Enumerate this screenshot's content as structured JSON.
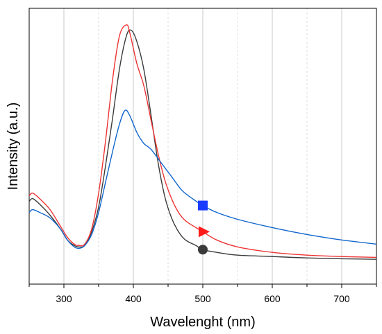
{
  "chart_data": {
    "type": "line",
    "title": "",
    "xlabel": "Wavelenght (nm)",
    "ylabel": "Intensity (a.u.)",
    "xlim": [
      250,
      750
    ],
    "ylim": [
      0,
      1
    ],
    "x_ticks": [
      300,
      400,
      500,
      600,
      700
    ],
    "x_minor_ticks": [
      250,
      350,
      450,
      550,
      650,
      750
    ],
    "y_ticks_shown": false,
    "grid": "vertical dashed at major and minor x ticks",
    "legend": "markers on curves at x=500",
    "series": [
      {
        "color": "#3a3a3a",
        "marker": "circle",
        "marker_x": 500,
        "marker_y": 0.125,
        "x": [
          250,
          255,
          265,
          280,
          295,
          305,
          315,
          322,
          330,
          340,
          350,
          360,
          370,
          380,
          390,
          397,
          405,
          415,
          425,
          435,
          445,
          455,
          465,
          475,
          490,
          500,
          520,
          550,
          600,
          650,
          700,
          750
        ],
        "y": [
          0.3,
          0.31,
          0.29,
          0.25,
          0.2,
          0.16,
          0.14,
          0.135,
          0.14,
          0.19,
          0.28,
          0.43,
          0.6,
          0.78,
          0.9,
          0.92,
          0.88,
          0.78,
          0.62,
          0.45,
          0.32,
          0.24,
          0.19,
          0.16,
          0.14,
          0.125,
          0.115,
          0.105,
          0.1,
          0.095,
          0.092,
          0.09
        ]
      },
      {
        "color": "#ee3333",
        "marker": "triangle-right",
        "marker_x": 500,
        "marker_y": 0.19,
        "x": [
          250,
          255,
          265,
          280,
          295,
          305,
          315,
          322,
          330,
          340,
          350,
          360,
          370,
          380,
          390,
          395,
          405,
          415,
          425,
          435,
          445,
          455,
          465,
          475,
          490,
          500,
          520,
          550,
          600,
          650,
          700,
          750
        ],
        "y": [
          0.32,
          0.33,
          0.31,
          0.27,
          0.21,
          0.17,
          0.145,
          0.14,
          0.145,
          0.2,
          0.33,
          0.52,
          0.74,
          0.9,
          0.94,
          0.91,
          0.8,
          0.72,
          0.6,
          0.48,
          0.38,
          0.31,
          0.26,
          0.23,
          0.205,
          0.19,
          0.16,
          0.135,
          0.115,
          0.105,
          0.1,
          0.097
        ]
      },
      {
        "color": "#1166cc",
        "marker": "square",
        "marker_x": 500,
        "marker_y": 0.285,
        "x": [
          250,
          255,
          265,
          280,
          295,
          305,
          315,
          322,
          330,
          340,
          350,
          360,
          370,
          380,
          388,
          395,
          405,
          415,
          425,
          440,
          455,
          470,
          485,
          500,
          520,
          550,
          600,
          650,
          700,
          750
        ],
        "y": [
          0.26,
          0.27,
          0.26,
          0.24,
          0.2,
          0.16,
          0.135,
          0.13,
          0.14,
          0.18,
          0.26,
          0.37,
          0.48,
          0.58,
          0.63,
          0.61,
          0.55,
          0.51,
          0.49,
          0.44,
          0.39,
          0.34,
          0.31,
          0.285,
          0.26,
          0.235,
          0.205,
          0.18,
          0.16,
          0.145
        ]
      }
    ]
  }
}
